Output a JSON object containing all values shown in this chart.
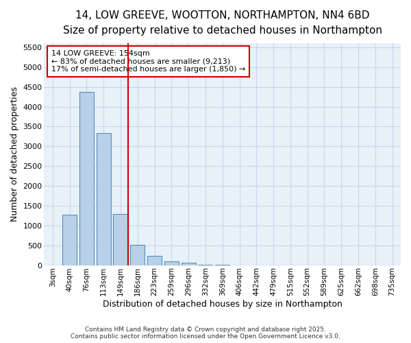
{
  "title": "14, LOW GREEVE, WOOTTON, NORTHAMPTON, NN4 6BD",
  "subtitle": "Size of property relative to detached houses in Northampton",
  "xlabel": "Distribution of detached houses by size in Northampton",
  "ylabel": "Number of detached properties",
  "categories": [
    "3sqm",
    "40sqm",
    "76sqm",
    "113sqm",
    "149sqm",
    "186sqm",
    "223sqm",
    "259sqm",
    "296sqm",
    "332sqm",
    "369sqm",
    "406sqm",
    "442sqm",
    "479sqm",
    "515sqm",
    "552sqm",
    "589sqm",
    "625sqm",
    "662sqm",
    "698sqm",
    "735sqm"
  ],
  "values": [
    0,
    1270,
    4370,
    3330,
    1290,
    505,
    230,
    95,
    55,
    10,
    5,
    0,
    0,
    0,
    0,
    0,
    0,
    0,
    0,
    0,
    0
  ],
  "bar_color": "#b8d0e8",
  "bar_edge_color": "#5b8db8",
  "highlight_index": 4,
  "vline_color": "#cc0000",
  "ylim": [
    0,
    5600
  ],
  "yticks": [
    0,
    500,
    1000,
    1500,
    2000,
    2500,
    3000,
    3500,
    4000,
    4500,
    5000,
    5500
  ],
  "grid_color": "#c5d8ec",
  "plot_bg_color": "#e8f0f8",
  "fig_bg_color": "#ffffff",
  "annotation_text": "14 LOW GREEVE: 154sqm\n← 83% of detached houses are smaller (9,213)\n17% of semi-detached houses are larger (1,850) →",
  "annotation_box_color": "#ffffff",
  "annotation_box_edge": "#cc0000",
  "title_fontsize": 11,
  "subtitle_fontsize": 9,
  "footer1": "Contains HM Land Registry data © Crown copyright and database right 2025.",
  "footer2": "Contains public sector information licensed under the Open Government Licence v3.0."
}
